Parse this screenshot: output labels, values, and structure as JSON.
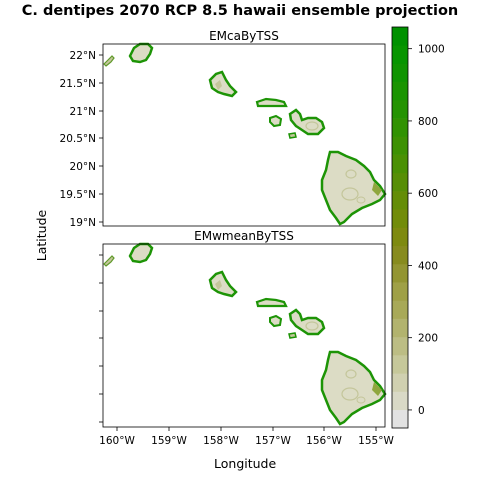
{
  "title": "C. dentipes 2070 RCP 8.5 hawaii ensemble projection",
  "xlabel": "Longitude",
  "ylabel": "Latitude",
  "panels": [
    {
      "name": "EMcaByTSS",
      "show_y_labels": true
    },
    {
      "name": "EMwmeanByTSS",
      "show_y_labels": false
    }
  ],
  "x_ticks": [
    "160°W",
    "159°W",
    "158°W",
    "157°W",
    "156°W",
    "155°W"
  ],
  "y_ticks": [
    "22°N",
    "21.5°N",
    "21°N",
    "20.5°N",
    "20°N",
    "19.5°N",
    "19°N"
  ],
  "colorbar": {
    "range": [
      -50,
      1060
    ],
    "tick_values": [
      0,
      200,
      400,
      600,
      800,
      1000
    ],
    "tick_labels": [
      "0",
      "200",
      "400",
      "600",
      "800",
      "1000"
    ],
    "colors": [
      "#e2e2e2",
      "#d9d9c6",
      "#d0d0b0",
      "#c6c89a",
      "#bcbd84",
      "#b2b36e",
      "#a8a958",
      "#9fa046",
      "#939532",
      "#878b1e",
      "#7e8a10",
      "#728c0a",
      "#648d07",
      "#578e06",
      "#4a9004",
      "#3d9103",
      "#319202",
      "#259302",
      "#1a9401",
      "#109401",
      "#079500",
      "#009100"
    ]
  },
  "colors": {
    "land_base": "#dcdcc5",
    "land_mid": "#c4c69b",
    "land_edge": "#5f9a2a",
    "land_high": "#1d9406"
  }
}
